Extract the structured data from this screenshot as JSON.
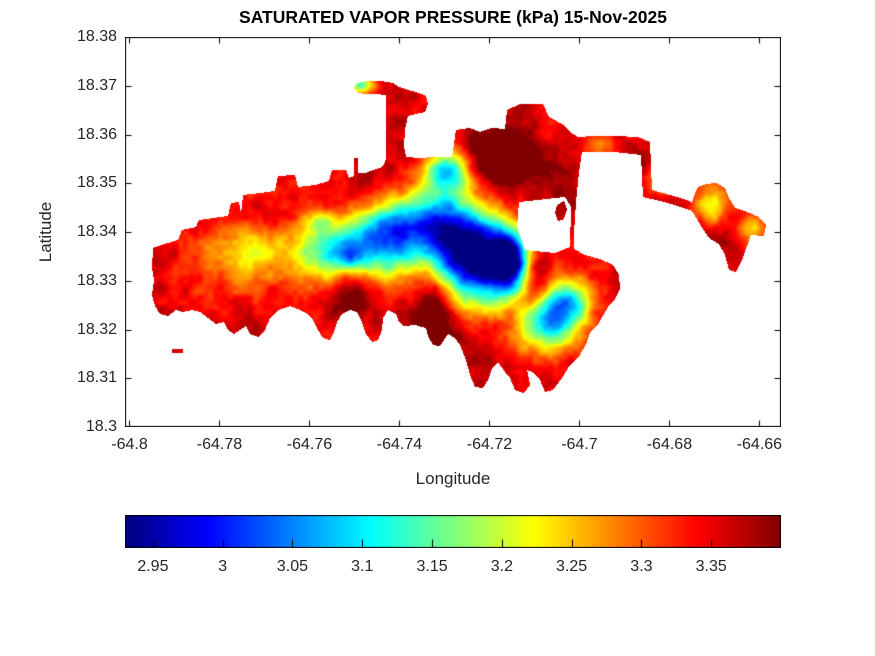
{
  "figure": {
    "background": "#ffffff",
    "axis_text_color": "#262626",
    "axis_line_color": "#000000",
    "title_color": "#000000"
  },
  "chart_data": {
    "type": "heatmap",
    "title": "SATURATED VAPOR PRESSURE (kPa) 15-Nov-2025",
    "units": "kPa",
    "date_label": "15-Nov-2025",
    "xlabel": "Longitude",
    "ylabel": "Latitude",
    "xlim": [
      -64.801,
      -64.6552
    ],
    "ylim": [
      18.3,
      18.38
    ],
    "xticks": [
      -64.8,
      -64.78,
      -64.76,
      -64.74,
      -64.72,
      -64.7,
      -64.68,
      -64.66
    ],
    "xtick_labels": [
      "-64.8",
      "-64.78",
      "-64.76",
      "-64.74",
      "-64.72",
      "-64.7",
      "-64.68",
      "-64.66"
    ],
    "yticks": [
      18.3,
      18.31,
      18.32,
      18.33,
      18.34,
      18.35,
      18.36,
      18.37,
      18.38
    ],
    "ytick_labels": [
      "18.3",
      "18.31",
      "18.32",
      "18.33",
      "18.34",
      "18.35",
      "18.36",
      "18.37",
      "18.38"
    ],
    "grid": false,
    "colormap": "jet",
    "value_range": [
      2.93,
      3.4
    ],
    "colorbar": {
      "orientation": "horizontal",
      "ticks": [
        2.95,
        3,
        3.05,
        3.1,
        3.15,
        3.2,
        3.25,
        3.3,
        3.35
      ],
      "tick_labels": [
        "2.95",
        "3",
        "3.05",
        "3.1",
        "3.15",
        "3.2",
        "3.25",
        "3.3",
        "3.35"
      ]
    },
    "island": {
      "note": "coastline polygons in plot-area pixel coords (656x390 canvas)",
      "outline": [
        [
          28,
          211
        ],
        [
          43,
          206
        ],
        [
          53,
          203
        ],
        [
          57,
          193
        ],
        [
          71,
          190
        ],
        [
          74,
          183
        ],
        [
          103,
          179
        ],
        [
          106,
          166
        ],
        [
          114,
          165
        ],
        [
          116,
          177
        ],
        [
          118,
          158
        ],
        [
          135,
          156
        ],
        [
          150,
          154
        ],
        [
          153,
          139
        ],
        [
          170,
          138
        ],
        [
          173,
          150
        ],
        [
          190,
          148
        ],
        [
          204,
          144
        ],
        [
          207,
          133
        ],
        [
          221,
          133
        ],
        [
          224,
          141
        ],
        [
          229,
          139
        ],
        [
          229,
          121
        ],
        [
          233,
          121
        ],
        [
          233,
          136
        ],
        [
          241,
          136
        ],
        [
          248,
          133
        ],
        [
          255,
          131
        ],
        [
          259,
          128
        ],
        [
          261,
          122
        ],
        [
          261,
          58
        ],
        [
          251,
          57
        ],
        [
          241,
          57
        ],
        [
          233,
          56
        ],
        [
          229,
          51
        ],
        [
          232,
          46
        ],
        [
          243,
          44
        ],
        [
          256,
          44
        ],
        [
          268,
          46
        ],
        [
          274,
          50
        ],
        [
          283,
          53
        ],
        [
          294,
          56
        ],
        [
          301,
          59
        ],
        [
          303,
          67
        ],
        [
          300,
          75
        ],
        [
          291,
          77
        ],
        [
          283,
          79
        ],
        [
          280,
          92
        ],
        [
          279,
          110
        ],
        [
          281,
          120
        ],
        [
          295,
          121
        ],
        [
          310,
          120
        ],
        [
          327,
          120
        ],
        [
          331,
          93
        ],
        [
          345,
          91
        ],
        [
          355,
          95
        ],
        [
          367,
          91
        ],
        [
          380,
          92
        ],
        [
          382,
          73
        ],
        [
          395,
          67
        ],
        [
          418,
          67
        ],
        [
          424,
          80
        ],
        [
          437,
          87
        ],
        [
          445,
          95
        ],
        [
          453,
          100
        ],
        [
          470,
          99
        ],
        [
          490,
          99
        ],
        [
          513,
          100
        ],
        [
          525,
          105
        ],
        [
          527,
          153
        ],
        [
          545,
          158
        ],
        [
          562,
          163
        ],
        [
          567,
          166
        ],
        [
          570,
          156
        ],
        [
          573,
          150
        ],
        [
          581,
          147
        ],
        [
          591,
          146
        ],
        [
          600,
          151
        ],
        [
          604,
          161
        ],
        [
          610,
          171
        ],
        [
          622,
          175
        ],
        [
          634,
          180
        ],
        [
          641,
          188
        ],
        [
          639,
          199
        ],
        [
          626,
          198
        ],
        [
          622,
          209
        ],
        [
          617,
          223
        ],
        [
          611,
          235
        ],
        [
          604,
          233
        ],
        [
          600,
          218
        ],
        [
          594,
          207
        ],
        [
          584,
          201
        ],
        [
          578,
          192
        ],
        [
          572,
          182
        ],
        [
          567,
          174
        ],
        [
          550,
          168
        ],
        [
          535,
          164
        ],
        [
          518,
          160
        ],
        [
          516,
          118
        ],
        [
          490,
          115
        ],
        [
          475,
          115
        ],
        [
          457,
          115
        ],
        [
          454,
          135
        ],
        [
          451,
          165
        ],
        [
          449,
          195
        ],
        [
          449,
          212
        ],
        [
          460,
          218
        ],
        [
          475,
          222
        ],
        [
          488,
          228
        ],
        [
          494,
          238
        ],
        [
          495,
          252
        ],
        [
          490,
          262
        ],
        [
          483,
          270
        ],
        [
          477,
          280
        ],
        [
          473,
          288
        ],
        [
          465,
          295
        ],
        [
          462,
          305
        ],
        [
          455,
          318
        ],
        [
          445,
          328
        ],
        [
          437,
          341
        ],
        [
          428,
          353
        ],
        [
          420,
          355
        ],
        [
          415,
          343
        ],
        [
          408,
          335
        ],
        [
          402,
          333
        ],
        [
          405,
          348
        ],
        [
          399,
          356
        ],
        [
          390,
          353
        ],
        [
          385,
          341
        ],
        [
          380,
          335
        ],
        [
          373,
          325
        ],
        [
          367,
          331
        ],
        [
          363,
          343
        ],
        [
          358,
          351
        ],
        [
          350,
          350
        ],
        [
          345,
          338
        ],
        [
          341,
          323
        ],
        [
          335,
          308
        ],
        [
          330,
          301
        ],
        [
          323,
          297
        ],
        [
          319,
          303
        ],
        [
          315,
          309
        ],
        [
          308,
          308
        ],
        [
          303,
          299
        ],
        [
          301,
          291
        ],
        [
          290,
          288
        ],
        [
          279,
          289
        ],
        [
          274,
          285
        ],
        [
          271,
          277
        ],
        [
          263,
          273
        ],
        [
          258,
          281
        ],
        [
          257,
          293
        ],
        [
          253,
          303
        ],
        [
          247,
          305
        ],
        [
          241,
          297
        ],
        [
          237,
          285
        ],
        [
          232,
          275
        ],
        [
          225,
          273
        ],
        [
          217,
          277
        ],
        [
          212,
          285
        ],
        [
          208,
          297
        ],
        [
          205,
          303
        ],
        [
          198,
          301
        ],
        [
          193,
          293
        ],
        [
          188,
          283
        ],
        [
          183,
          277
        ],
        [
          175,
          273
        ],
        [
          165,
          269
        ],
        [
          153,
          273
        ],
        [
          145,
          281
        ],
        [
          140,
          293
        ],
        [
          133,
          300
        ],
        [
          125,
          297
        ],
        [
          121,
          289
        ],
        [
          115,
          293
        ],
        [
          109,
          297
        ],
        [
          103,
          293
        ],
        [
          99,
          285
        ],
        [
          91,
          287
        ],
        [
          83,
          281
        ],
        [
          75,
          275
        ],
        [
          67,
          273
        ],
        [
          58,
          275
        ],
        [
          51,
          273
        ],
        [
          43,
          279
        ],
        [
          35,
          277
        ],
        [
          30,
          269
        ],
        [
          27,
          258
        ],
        [
          29,
          243
        ],
        [
          27,
          231
        ]
      ],
      "holes": [
        [
          [
            394,
            165
          ],
          [
            440,
            160
          ],
          [
            446,
            170
          ],
          [
            445,
            210
          ],
          [
            430,
            216
          ],
          [
            400,
            213
          ],
          [
            392,
            190
          ]
        ]
      ],
      "islets": [
        [
          [
            47,
            312
          ],
          [
            58,
            312
          ],
          [
            58,
            316
          ],
          [
            47,
            316
          ]
        ],
        [
          [
            432,
            168
          ],
          [
            439,
            164
          ],
          [
            442,
            172
          ],
          [
            439,
            182
          ],
          [
            433,
            184
          ],
          [
            430,
            176
          ]
        ]
      ]
    },
    "field": {
      "note": "value(x,y) = base + sum of gaussian blobs + noise, clamped to value_range",
      "base": 3.36,
      "blobs": [
        {
          "x": 353,
          "y": 225,
          "sx": 34,
          "sy": 28,
          "amp": -0.43
        },
        {
          "x": 383,
          "y": 222,
          "sx": 14,
          "sy": 20,
          "amp": -0.28
        },
        {
          "x": 320,
          "y": 185,
          "sx": 27,
          "sy": 22,
          "amp": -0.3
        },
        {
          "x": 322,
          "y": 133,
          "sx": 16,
          "sy": 15,
          "amp": -0.27
        },
        {
          "x": 220,
          "y": 215,
          "sx": 38,
          "sy": 23,
          "amp": -0.26
        },
        {
          "x": 265,
          "y": 193,
          "sx": 25,
          "sy": 22,
          "amp": -0.24
        },
        {
          "x": 195,
          "y": 185,
          "sx": 9,
          "sy": 8,
          "amp": -0.1
        },
        {
          "x": 225,
          "y": 218,
          "sx": 8,
          "sy": 7,
          "amp": -0.1
        },
        {
          "x": 110,
          "y": 225,
          "sx": 40,
          "sy": 25,
          "amp": -0.09
        },
        {
          "x": 130,
          "y": 208,
          "sx": 18,
          "sy": 18,
          "amp": -0.07
        },
        {
          "x": 420,
          "y": 283,
          "sx": 20,
          "sy": 22,
          "amp": -0.28
        },
        {
          "x": 445,
          "y": 265,
          "sx": 16,
          "sy": 18,
          "amp": -0.2
        },
        {
          "x": 587,
          "y": 168,
          "sx": 13,
          "sy": 13,
          "amp": -0.14
        },
        {
          "x": 627,
          "y": 191,
          "sx": 10,
          "sy": 10,
          "amp": -0.11
        },
        {
          "x": 535,
          "y": 143,
          "sx": 10,
          "sy": 9,
          "amp": -0.1
        },
        {
          "x": 235,
          "y": 47,
          "sx": 10,
          "sy": 6,
          "amp": -0.22
        },
        {
          "x": 475,
          "y": 108,
          "sx": 14,
          "sy": 8,
          "amp": -0.1
        },
        {
          "x": 307,
          "y": 272,
          "sx": 13,
          "sy": 30,
          "amp": 0.14
        },
        {
          "x": 410,
          "y": 245,
          "sx": 12,
          "sy": 25,
          "amp": 0.16
        },
        {
          "x": 380,
          "y": 123,
          "sx": 23,
          "sy": 18,
          "amp": 0.13
        },
        {
          "x": 225,
          "y": 253,
          "sx": 14,
          "sy": 23,
          "amp": 0.11
        }
      ],
      "noise_octaves": [
        {
          "scale": 30,
          "amp": 0.022
        },
        {
          "scale": 12,
          "amp": 0.02
        },
        {
          "scale": 5,
          "amp": 0.013
        }
      ]
    }
  }
}
